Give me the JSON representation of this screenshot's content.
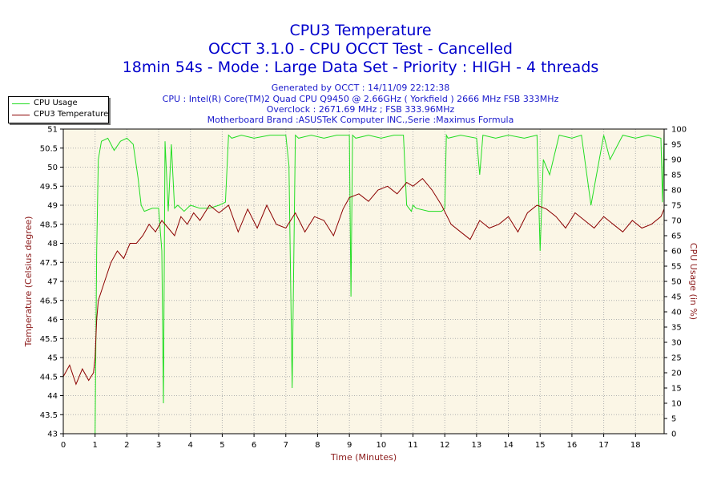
{
  "chart_data": {
    "type": "line",
    "title": "CPU3 Temperature",
    "subtitle": "OCCT 3.1.0 - CPU OCCT Test - Cancelled",
    "subtitle2": "18min 54s - Mode : Large Data Set - Priority : HIGH - 4 threads",
    "info": [
      "Generated by OCCT : 14/11/09 22:12:38",
      "CPU : Intel(R) Core(TM)2 Quad CPU Q9450 @ 2.66GHz ( Yorkfield ) 2666 MHz FSB 333MHz",
      "Overclock : 2671.69 MHz ; FSB 333.96MHz",
      "Motherboard Brand :ASUSTeK Computer INC.,Serie :Maximus Formula"
    ],
    "xlabel": "Time (Minutes)",
    "ylabel": "Temperature (Celsius degree)",
    "y2label": "CPU Usage (in %)",
    "xlim": [
      0,
      18.9
    ],
    "ylim": [
      43,
      51
    ],
    "y2lim": [
      0,
      100
    ],
    "xticks": [
      "0",
      "1",
      "2",
      "3",
      "4",
      "5",
      "6",
      "7",
      "8",
      "9",
      "10",
      "11",
      "12",
      "13",
      "14",
      "15",
      "16",
      "17",
      "18"
    ],
    "yticks": [
      "43",
      "43.5",
      "44",
      "44.5",
      "45",
      "45.5",
      "46",
      "46.5",
      "47",
      "47.5",
      "48",
      "48.5",
      "49",
      "49.5",
      "50",
      "50.5",
      "51"
    ],
    "y2ticks": [
      "0",
      "5",
      "10",
      "15",
      "20",
      "25",
      "30",
      "35",
      "40",
      "45",
      "50",
      "55",
      "60",
      "65",
      "70",
      "75",
      "80",
      "85",
      "90",
      "95",
      "100"
    ],
    "grid": true,
    "legend_position": "top-left",
    "series": [
      {
        "name": "CPU Usage",
        "axis": "right",
        "color": "#22dd22",
        "x": [
          0,
          0.2,
          0.4,
          0.6,
          0.8,
          0.95,
          1.0,
          1.05,
          1.1,
          1.2,
          1.4,
          1.6,
          1.8,
          2.0,
          2.2,
          2.35,
          2.45,
          2.55,
          2.8,
          3.0,
          3.1,
          3.15,
          3.2,
          3.3,
          3.4,
          3.5,
          3.6,
          3.8,
          4.0,
          4.3,
          4.6,
          4.9,
          5.1,
          5.2,
          5.3,
          5.6,
          6.0,
          6.5,
          7.0,
          7.1,
          7.2,
          7.3,
          7.4,
          7.8,
          8.2,
          8.6,
          9.0,
          9.05,
          9.1,
          9.2,
          9.6,
          10.0,
          10.4,
          10.7,
          10.8,
          10.95,
          11.0,
          11.1,
          11.5,
          11.9,
          12.0,
          12.05,
          12.1,
          12.5,
          13.0,
          13.1,
          13.2,
          13.6,
          14.0,
          14.5,
          14.9,
          15.0,
          15.1,
          15.3,
          15.6,
          16.0,
          16.3,
          16.6,
          17.0,
          17.2,
          17.6,
          18.0,
          18.4,
          18.8,
          18.85,
          18.9
        ],
        "y": [
          0,
          0,
          0,
          0,
          0,
          0,
          0,
          60,
          90,
          96,
          97,
          93,
          96,
          97,
          95,
          84,
          75,
          73,
          74,
          74,
          60,
          10,
          96,
          73,
          95,
          74,
          75,
          73,
          75,
          74,
          74,
          75,
          76,
          98,
          97,
          98,
          97,
          98,
          98,
          88,
          15,
          98,
          97,
          98,
          97,
          98,
          98,
          45,
          98,
          97,
          98,
          97,
          98,
          98,
          75,
          73,
          75,
          74,
          73,
          73,
          74,
          98,
          97,
          98,
          97,
          85,
          98,
          97,
          98,
          97,
          98,
          60,
          90,
          85,
          98,
          97,
          98,
          75,
          98,
          90,
          98,
          97,
          98,
          97,
          76,
          99
        ]
      },
      {
        "name": "CPU3 Temperature",
        "axis": "left",
        "color": "#8b0000",
        "x": [
          0,
          0.2,
          0.4,
          0.6,
          0.8,
          0.95,
          1.0,
          1.05,
          1.1,
          1.3,
          1.5,
          1.7,
          1.9,
          2.1,
          2.3,
          2.5,
          2.7,
          2.9,
          3.1,
          3.3,
          3.5,
          3.7,
          3.9,
          4.1,
          4.3,
          4.6,
          4.9,
          5.2,
          5.5,
          5.8,
          6.1,
          6.4,
          6.7,
          7.0,
          7.3,
          7.6,
          7.9,
          8.2,
          8.5,
          8.8,
          9.0,
          9.3,
          9.6,
          9.9,
          10.2,
          10.5,
          10.8,
          11.0,
          11.3,
          11.6,
          11.9,
          12.2,
          12.5,
          12.8,
          13.1,
          13.4,
          13.7,
          14.0,
          14.3,
          14.6,
          14.9,
          15.2,
          15.5,
          15.8,
          16.1,
          16.4,
          16.7,
          17.0,
          17.3,
          17.6,
          17.9,
          18.2,
          18.5,
          18.8,
          18.9
        ],
        "y": [
          44.5,
          44.8,
          44.3,
          44.7,
          44.4,
          44.6,
          45,
          46,
          46.5,
          47,
          47.5,
          47.8,
          47.6,
          48,
          48,
          48.2,
          48.5,
          48.3,
          48.6,
          48.4,
          48.2,
          48.7,
          48.5,
          48.8,
          48.6,
          49,
          48.8,
          49,
          48.3,
          48.9,
          48.4,
          49,
          48.5,
          48.4,
          48.8,
          48.3,
          48.7,
          48.6,
          48.2,
          48.9,
          49.2,
          49.3,
          49.1,
          49.4,
          49.5,
          49.3,
          49.6,
          49.5,
          49.7,
          49.4,
          49,
          48.5,
          48.3,
          48.1,
          48.6,
          48.4,
          48.5,
          48.7,
          48.3,
          48.8,
          49,
          48.9,
          48.7,
          48.4,
          48.8,
          48.6,
          48.4,
          48.7,
          48.5,
          48.3,
          48.6,
          48.4,
          48.5,
          48.7,
          48.9
        ]
      }
    ]
  }
}
